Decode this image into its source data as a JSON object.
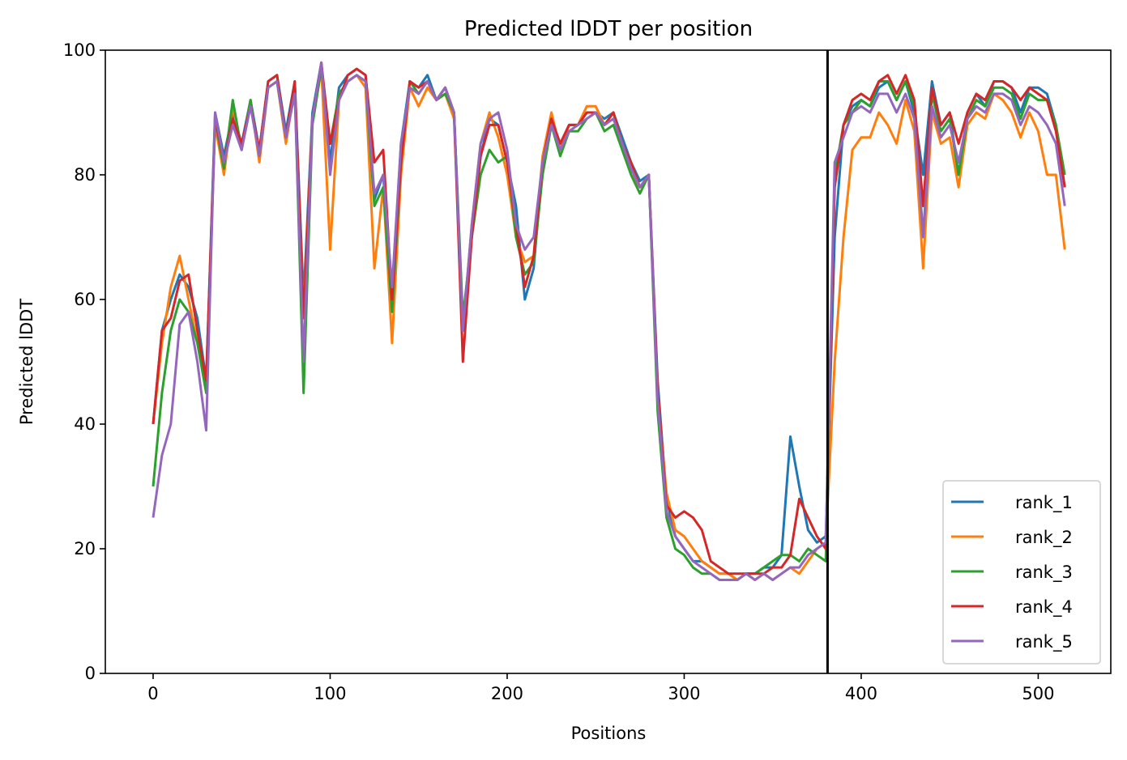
{
  "chart_data": {
    "type": "line",
    "title": "Predicted lDDT per position",
    "xlabel": "Positions",
    "ylabel": "Predicted lDDT",
    "xlim": [
      -27,
      541
    ],
    "ylim": [
      0,
      100
    ],
    "xticks": [
      0,
      100,
      200,
      300,
      400,
      500
    ],
    "yticks": [
      0,
      20,
      40,
      60,
      80,
      100
    ],
    "grid": false,
    "legend_position": "lower right",
    "vertical_line": 381,
    "x": [
      0,
      5,
      10,
      15,
      20,
      25,
      30,
      35,
      40,
      45,
      50,
      55,
      60,
      65,
      70,
      75,
      80,
      85,
      90,
      95,
      100,
      105,
      110,
      115,
      120,
      125,
      130,
      135,
      140,
      145,
      150,
      155,
      160,
      165,
      170,
      175,
      180,
      185,
      190,
      195,
      200,
      205,
      210,
      215,
      220,
      225,
      230,
      235,
      240,
      245,
      250,
      255,
      260,
      265,
      270,
      275,
      280,
      285,
      290,
      295,
      300,
      305,
      310,
      315,
      320,
      325,
      330,
      335,
      340,
      345,
      350,
      355,
      360,
      365,
      370,
      375,
      380,
      385,
      390,
      395,
      400,
      405,
      410,
      415,
      420,
      425,
      430,
      435,
      440,
      445,
      450,
      455,
      460,
      465,
      470,
      475,
      480,
      485,
      490,
      495,
      500,
      505,
      510,
      515
    ],
    "series": [
      {
        "name": "rank_1",
        "color": "#1f77b4",
        "values": [
          40,
          55,
          60,
          64,
          62,
          57,
          47,
          90,
          83,
          90,
          85,
          92,
          84,
          95,
          96,
          87,
          95,
          60,
          90,
          98,
          82,
          94,
          96,
          97,
          96,
          76,
          80,
          60,
          85,
          95,
          94,
          96,
          92,
          94,
          90,
          55,
          70,
          83,
          89,
          88,
          82,
          75,
          60,
          65,
          82,
          88,
          85,
          88,
          88,
          90,
          90,
          89,
          90,
          86,
          82,
          79,
          80,
          47,
          28,
          22,
          20,
          18,
          18,
          17,
          16,
          16,
          15,
          16,
          16,
          17,
          17,
          19,
          38,
          30,
          23,
          21,
          22,
          70,
          88,
          91,
          92,
          91,
          94,
          95,
          92,
          95,
          90,
          80,
          95,
          88,
          90,
          80,
          90,
          93,
          91,
          95,
          95,
          94,
          90,
          94,
          94,
          93,
          88,
          78
        ]
      },
      {
        "name": "rank_2",
        "color": "#ff7f0e",
        "values": [
          40,
          53,
          62,
          67,
          60,
          53,
          46,
          88,
          80,
          91,
          84,
          92,
          82,
          94,
          95,
          85,
          94,
          58,
          89,
          97,
          68,
          92,
          95,
          96,
          94,
          65,
          78,
          53,
          80,
          94,
          91,
          94,
          92,
          93,
          89,
          55,
          72,
          85,
          90,
          86,
          80,
          70,
          66,
          67,
          83,
          90,
          84,
          88,
          88,
          91,
          91,
          88,
          90,
          85,
          80,
          78,
          80,
          45,
          29,
          23,
          22,
          20,
          18,
          17,
          16,
          16,
          15,
          16,
          15,
          16,
          15,
          16,
          17,
          16,
          18,
          20,
          21,
          50,
          70,
          84,
          86,
          86,
          90,
          88,
          85,
          92,
          87,
          65,
          90,
          85,
          86,
          78,
          88,
          90,
          89,
          93,
          92,
          90,
          86,
          90,
          87,
          80,
          80,
          68
        ]
      },
      {
        "name": "rank_3",
        "color": "#2ca02c",
        "values": [
          30,
          45,
          55,
          60,
          58,
          53,
          45,
          89,
          81,
          92,
          84,
          92,
          83,
          94,
          95,
          86,
          94,
          45,
          88,
          97,
          85,
          93,
          95,
          96,
          95,
          75,
          78,
          58,
          82,
          95,
          93,
          95,
          92,
          93,
          90,
          57,
          70,
          80,
          84,
          82,
          83,
          70,
          64,
          66,
          80,
          88,
          83,
          87,
          87,
          89,
          90,
          87,
          88,
          84,
          80,
          77,
          80,
          42,
          25,
          20,
          19,
          17,
          16,
          16,
          15,
          15,
          15,
          16,
          16,
          17,
          18,
          19,
          19,
          18,
          20,
          19,
          18,
          80,
          88,
          90,
          92,
          91,
          95,
          95,
          92,
          95,
          91,
          70,
          93,
          87,
          89,
          80,
          89,
          92,
          91,
          94,
          94,
          93,
          89,
          93,
          92,
          92,
          88,
          80
        ]
      },
      {
        "name": "rank_4",
        "color": "#d62728",
        "values": [
          40,
          55,
          57,
          63,
          64,
          55,
          47,
          89,
          82,
          89,
          85,
          91,
          84,
          95,
          96,
          86,
          95,
          57,
          89,
          98,
          85,
          92,
          96,
          97,
          96,
          82,
          84,
          60,
          82,
          95,
          94,
          95,
          92,
          94,
          90,
          50,
          70,
          83,
          88,
          88,
          82,
          72,
          62,
          67,
          82,
          89,
          85,
          88,
          88,
          90,
          90,
          88,
          90,
          85,
          82,
          78,
          80,
          46,
          27,
          25,
          26,
          25,
          23,
          18,
          17,
          16,
          16,
          16,
          16,
          16,
          17,
          17,
          19,
          28,
          25,
          22,
          20,
          78,
          88,
          92,
          93,
          92,
          95,
          96,
          93,
          96,
          92,
          75,
          94,
          88,
          90,
          85,
          90,
          93,
          92,
          95,
          95,
          94,
          92,
          94,
          93,
          92,
          87,
          78
        ]
      },
      {
        "name": "rank_5",
        "color": "#9467bd",
        "values": [
          25,
          35,
          40,
          56,
          58,
          50,
          39,
          90,
          82,
          88,
          84,
          91,
          83,
          94,
          95,
          86,
          93,
          50,
          89,
          98,
          80,
          92,
          95,
          96,
          95,
          77,
          80,
          62,
          85,
          94,
          93,
          95,
          92,
          94,
          90,
          55,
          72,
          85,
          89,
          90,
          84,
          72,
          68,
          70,
          82,
          88,
          84,
          87,
          88,
          89,
          90,
          88,
          89,
          85,
          81,
          78,
          80,
          44,
          26,
          22,
          20,
          18,
          17,
          16,
          15,
          15,
          15,
          16,
          15,
          16,
          15,
          16,
          17,
          17,
          19,
          20,
          21,
          82,
          86,
          90,
          91,
          90,
          93,
          93,
          90,
          93,
          89,
          70,
          91,
          86,
          88,
          82,
          89,
          91,
          90,
          93,
          93,
          92,
          88,
          91,
          90,
          88,
          85,
          75
        ]
      }
    ]
  }
}
